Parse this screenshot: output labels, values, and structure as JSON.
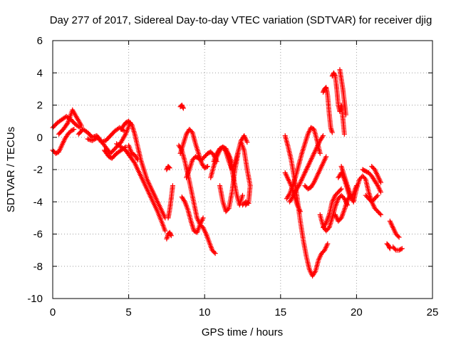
{
  "chart_data": {
    "type": "scatter",
    "title": "Day 277 of 2017, Sidereal Day-to-day VTEC variation (SDTVAR) for receiver djig",
    "xlabel": "GPS time / hours",
    "ylabel": "SDTVAR / TECUs",
    "xlim": [
      0,
      25
    ],
    "ylim": [
      -10,
      6
    ],
    "xticks": [
      "0",
      "5",
      "10",
      "15",
      "20",
      "25"
    ],
    "yticks": [
      "-10",
      "-8",
      "-6",
      "-4",
      "-2",
      "0",
      "2",
      "4",
      "6"
    ],
    "grid": true,
    "marker": "plus",
    "marker_color": "#ff0000",
    "tracks": [
      {
        "x": [
          0.0,
          0.2,
          0.4,
          0.6,
          0.8,
          1.0,
          1.2,
          1.4
        ],
        "y": [
          -0.8,
          -1.0,
          -0.9,
          -0.5,
          -0.1,
          0.2,
          0.4,
          0.5
        ]
      },
      {
        "x": [
          0.0,
          0.3,
          0.6,
          0.9,
          1.2,
          1.5,
          1.8
        ],
        "y": [
          0.6,
          0.9,
          1.1,
          1.3,
          1.1,
          0.8,
          0.6
        ]
      },
      {
        "x": [
          0.4,
          0.7,
          1.0,
          1.3,
          1.6,
          1.9
        ],
        "y": [
          0.2,
          0.5,
          0.9,
          1.7,
          1.2,
          0.7
        ]
      },
      {
        "x": [
          1.7,
          2.0,
          2.3,
          2.6,
          2.9,
          3.2,
          3.5,
          3.8,
          4.1,
          4.4,
          4.7
        ],
        "y": [
          0.2,
          0.5,
          0.3,
          0.0,
          0.1,
          -0.3,
          -0.2,
          0.1,
          0.4,
          0.6,
          0.4
        ]
      },
      {
        "x": [
          2.3,
          2.6,
          3.0,
          3.4,
          3.8,
          4.2,
          4.5,
          4.8,
          5.1
        ],
        "y": [
          -0.1,
          -0.2,
          0.0,
          -0.5,
          -1.0,
          -0.6,
          -0.3,
          0.2,
          0.9
        ]
      },
      {
        "x": [
          3.4,
          3.7,
          3.9,
          4.2,
          4.5,
          4.8
        ],
        "y": [
          -0.8,
          -1.2,
          -1.3,
          -1.0,
          -0.8,
          -0.6
        ]
      },
      {
        "x": [
          4.5,
          4.8,
          5.0,
          5.2,
          5.4,
          5.6,
          5.8,
          6.0,
          6.2,
          6.5,
          6.8,
          7.1,
          7.4
        ],
        "y": [
          0.5,
          0.9,
          1.0,
          0.8,
          0.2,
          -0.6,
          -1.4,
          -2.0,
          -2.6,
          -3.2,
          -3.8,
          -4.4,
          -5.0
        ]
      },
      {
        "x": [
          4.2,
          4.5,
          4.8,
          5.1,
          5.4,
          5.7,
          6.0,
          6.3,
          6.6,
          6.9,
          7.2,
          7.4
        ],
        "y": [
          -0.4,
          -0.6,
          -0.8,
          -1.2,
          -1.6,
          -2.2,
          -2.8,
          -3.4,
          -4.0,
          -4.6,
          -5.3,
          -5.8
        ]
      },
      {
        "x": [
          5.0,
          5.2,
          5.4,
          5.6
        ],
        "y": [
          -0.5,
          -1.0,
          -1.1,
          -1.4
        ]
      },
      {
        "x": [
          7.5,
          7.6,
          7.7,
          7.8
        ],
        "y": [
          -6.3,
          -6.0,
          -5.9,
          -6.1
        ]
      },
      {
        "x": [
          7.5,
          7.6,
          7.7
        ],
        "y": [
          -2.0,
          -1.8,
          -1.9
        ]
      },
      {
        "x": [
          7.6,
          7.7,
          7.8,
          7.9
        ],
        "y": [
          -5.0,
          -4.5,
          -3.8,
          -3.0
        ]
      },
      {
        "x": [
          8.4,
          8.5,
          8.6
        ],
        "y": [
          1.9,
          2.0,
          1.8
        ]
      },
      {
        "x": [
          8.3,
          8.5,
          8.7,
          8.9,
          9.1,
          9.3,
          9.5,
          9.7,
          9.9,
          10.1,
          10.3,
          10.5,
          10.7
        ],
        "y": [
          -0.5,
          -0.8,
          -1.5,
          -2.3,
          -3.2,
          -4.1,
          -5.0,
          -5.4,
          -5.6,
          -6.0,
          -6.5,
          -7.0,
          -7.2
        ]
      },
      {
        "x": [
          8.4,
          8.6,
          8.8,
          9.0,
          9.2,
          9.4,
          9.6,
          9.8,
          10.0,
          10.2
        ],
        "y": [
          -1.0,
          -0.4,
          0.2,
          0.5,
          0.3,
          -0.4,
          -1.0,
          -1.6,
          -1.9,
          -1.8
        ]
      },
      {
        "x": [
          8.5,
          8.7,
          8.9,
          9.1,
          9.3,
          9.5,
          9.7,
          9.9
        ],
        "y": [
          -3.7,
          -4.0,
          -4.5,
          -5.2,
          -5.8,
          -5.9,
          -5.4,
          -5.0
        ]
      },
      {
        "x": [
          8.8,
          9.0,
          9.2,
          9.4,
          9.6,
          9.8,
          10.0,
          10.2,
          10.4,
          10.6,
          10.8
        ],
        "y": [
          -2.5,
          -2.0,
          -1.4,
          -1.2,
          -1.3,
          -1.4,
          -1.2,
          -1.0,
          -0.9,
          -1.1,
          -1.5
        ]
      },
      {
        "x": [
          10.4,
          10.6,
          10.8,
          11.0,
          11.2,
          11.4,
          11.6,
          11.8,
          12.0,
          12.2,
          12.4,
          12.6,
          12.8
        ],
        "y": [
          -2.5,
          -1.8,
          -1.2,
          -0.8,
          -0.6,
          -0.9,
          -1.5,
          -2.0,
          -1.6,
          -0.9,
          -0.2,
          0.1,
          -0.3
        ]
      },
      {
        "x": [
          10.6,
          10.8,
          11.0,
          11.2,
          11.4,
          11.6,
          11.8
        ],
        "y": [
          -1.5,
          -1.0,
          -0.7,
          -0.6,
          -0.7,
          -1.1,
          -1.6
        ]
      },
      {
        "x": [
          11.0,
          11.2,
          11.4,
          11.6,
          11.8,
          12.0,
          12.2
        ],
        "y": [
          -3.0,
          -4.0,
          -4.6,
          -4.4,
          -3.4,
          -2.0,
          -1.0
        ]
      },
      {
        "x": [
          11.5,
          11.7,
          11.9,
          12.1,
          12.3,
          12.5
        ],
        "y": [
          -1.0,
          -1.5,
          -2.5,
          -3.5,
          -4.2,
          -3.6
        ]
      },
      {
        "x": [
          12.4,
          12.6,
          12.8,
          13.0,
          12.9,
          12.7
        ],
        "y": [
          -0.3,
          -0.8,
          -2.0,
          -3.0,
          -4.0,
          -4.2
        ]
      },
      {
        "x": [
          12.5,
          12.7,
          12.9
        ],
        "y": [
          -4.2,
          -4.0,
          -4.1
        ]
      },
      {
        "x": [
          15.3,
          15.5,
          15.7,
          15.9,
          16.1,
          16.3,
          16.5,
          16.7,
          16.9,
          17.1,
          17.3,
          17.5,
          17.7,
          17.9,
          18.1
        ],
        "y": [
          0.1,
          -0.6,
          -1.4,
          -2.5,
          -3.8,
          -5.2,
          -6.4,
          -7.4,
          -8.2,
          -8.6,
          -8.3,
          -7.6,
          -7.2,
          -7.0,
          -6.6
        ]
      },
      {
        "x": [
          15.3,
          15.5,
          15.7,
          15.9,
          16.1,
          16.3
        ],
        "y": [
          -2.2,
          -2.6,
          -3.0,
          -3.6,
          -4.2,
          -4.6
        ]
      },
      {
        "x": [
          15.4,
          15.6,
          15.8,
          16.0,
          16.2,
          16.4,
          16.6,
          16.8,
          17.0,
          17.2,
          17.4,
          17.6
        ],
        "y": [
          -3.8,
          -3.5,
          -3.0,
          -2.4,
          -1.7,
          -1.0,
          -0.4,
          0.2,
          0.6,
          0.5,
          -0.2,
          -1.0
        ]
      },
      {
        "x": [
          15.6,
          15.8,
          16.0,
          16.2,
          16.4,
          16.6,
          16.8,
          17.0,
          17.2,
          17.4,
          17.6,
          17.8
        ],
        "y": [
          -4.0,
          -3.7,
          -3.3,
          -3.0,
          -2.6,
          -2.2,
          -1.8,
          -1.4,
          -1.0,
          -0.6,
          -0.2,
          0.1
        ]
      },
      {
        "x": [
          16.6,
          16.8,
          17.0,
          17.2,
          17.4,
          17.6,
          17.8,
          18.0
        ],
        "y": [
          -3.0,
          -3.2,
          -3.1,
          -2.8,
          -2.4,
          -2.0,
          -1.6,
          -1.2
        ]
      },
      {
        "x": [
          17.6,
          17.8,
          18.0,
          18.2,
          18.4,
          18.6,
          18.8,
          19.0,
          19.2,
          19.4
        ],
        "y": [
          -4.8,
          -5.5,
          -5.8,
          -5.6,
          -5.0,
          -4.3,
          -3.8,
          -3.6,
          -3.8,
          -4.2
        ]
      },
      {
        "x": [
          17.8,
          18.0,
          18.2,
          18.4,
          18.6,
          18.8,
          19.0
        ],
        "y": [
          -5.6,
          -5.3,
          -4.8,
          -4.0,
          -3.6,
          -3.4,
          -3.2
        ]
      },
      {
        "x": [
          17.8,
          17.9,
          18.0,
          18.1,
          18.2,
          18.3,
          18.4
        ],
        "y": [
          2.8,
          3.0,
          3.1,
          2.6,
          1.5,
          0.6,
          0.3
        ]
      },
      {
        "x": [
          18.4,
          18.5,
          18.6,
          18.7,
          18.8,
          18.9,
          19.0,
          19.1,
          19.2
        ],
        "y": [
          3.8,
          4.0,
          3.8,
          3.0,
          2.0,
          1.6,
          2.0,
          1.2,
          0.2
        ]
      },
      {
        "x": [
          18.9,
          19.0,
          19.1,
          19.2,
          19.3
        ],
        "y": [
          4.2,
          3.6,
          3.0,
          2.2,
          1.4
        ]
      },
      {
        "x": [
          18.8,
          19.0,
          19.2,
          19.4,
          19.6,
          19.8,
          20.0
        ],
        "y": [
          -2.5,
          -2.2,
          -2.6,
          -3.2,
          -3.8,
          -3.5,
          -3.0
        ]
      },
      {
        "x": [
          18.6,
          18.8,
          19.0,
          19.2,
          19.4,
          19.6
        ],
        "y": [
          -4.8,
          -5.2,
          -5.0,
          -4.5,
          -3.9,
          -3.6
        ]
      },
      {
        "x": [
          19.0,
          19.2,
          19.4,
          19.6,
          19.8
        ],
        "y": [
          -1.8,
          -2.4,
          -3.0,
          -3.6,
          -4.0
        ]
      },
      {
        "x": [
          19.8,
          20.0,
          20.2,
          20.4,
          20.6,
          20.8,
          21.0,
          21.2,
          21.4,
          21.6
        ],
        "y": [
          -4.0,
          -3.2,
          -2.6,
          -2.4,
          -2.6,
          -3.4,
          -4.0,
          -4.4,
          -4.6,
          -4.8
        ]
      },
      {
        "x": [
          20.4,
          20.6,
          20.8,
          21.0,
          21.2,
          21.4,
          21.6
        ],
        "y": [
          -2.0,
          -2.1,
          -2.2,
          -2.4,
          -2.7,
          -3.0,
          -3.4
        ]
      },
      {
        "x": [
          21.0,
          21.2,
          21.4,
          21.6
        ],
        "y": [
          -1.8,
          -2.0,
          -2.4,
          -2.8
        ]
      },
      {
        "x": [
          20.6,
          20.8,
          21.0,
          21.2,
          21.4
        ],
        "y": [
          -3.6,
          -3.8,
          -4.0,
          -3.8,
          -3.6
        ]
      },
      {
        "x": [
          22.0,
          22.1,
          22.2
        ],
        "y": [
          -6.6,
          -6.7,
          -6.9
        ]
      },
      {
        "x": [
          22.2,
          22.4,
          22.6,
          22.8
        ],
        "y": [
          -5.2,
          -5.6,
          -6.0,
          -6.2
        ]
      },
      {
        "x": [
          22.4,
          22.6,
          22.8,
          23.0
        ],
        "y": [
          -6.8,
          -7.0,
          -7.0,
          -6.9
        ]
      }
    ]
  }
}
